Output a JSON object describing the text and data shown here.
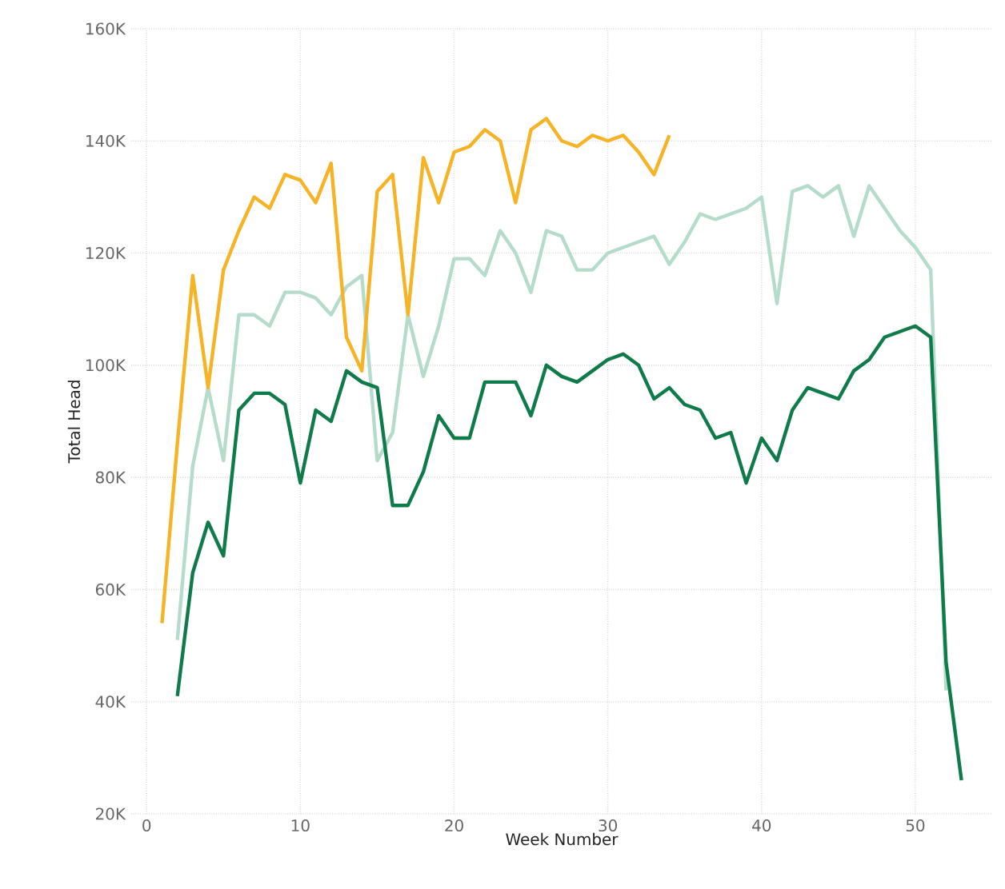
{
  "chart_data": {
    "type": "line",
    "xlabel": "Week Number",
    "ylabel": "Total Head",
    "xlim": [
      -1,
      55
    ],
    "xticks": [
      0,
      10,
      20,
      30,
      40,
      50
    ],
    "ylim": [
      20000,
      160000
    ],
    "yticks": [
      {
        "value": 20000,
        "label": "20K"
      },
      {
        "value": 40000,
        "label": "40K"
      },
      {
        "value": 60000,
        "label": "60K"
      },
      {
        "value": 80000,
        "label": "80K"
      },
      {
        "value": 100000,
        "label": "100K"
      },
      {
        "value": 120000,
        "label": "120K"
      },
      {
        "value": 140000,
        "label": "140K"
      },
      {
        "value": 160000,
        "label": "160K"
      }
    ],
    "grid": true,
    "line_style": "solid",
    "marker": "none",
    "series": [
      {
        "color": "#b5dccb",
        "x": [
          2,
          3,
          4,
          5,
          6,
          7,
          8,
          9,
          10,
          11,
          12,
          13,
          14,
          15,
          16,
          17,
          18,
          19,
          20,
          21,
          22,
          23,
          24,
          25,
          26,
          27,
          28,
          29,
          30,
          31,
          32,
          33,
          34,
          35,
          36,
          37,
          38,
          39,
          40,
          41,
          42,
          43,
          44,
          45,
          46,
          47,
          48,
          49,
          50,
          51,
          52
        ],
        "values": [
          51000,
          82000,
          96000,
          83000,
          109000,
          109000,
          107000,
          113000,
          113000,
          112000,
          109000,
          114000,
          116000,
          83000,
          88000,
          109000,
          98000,
          107000,
          119000,
          119000,
          116000,
          124000,
          120000,
          113000,
          124000,
          123000,
          117000,
          117000,
          120000,
          121000,
          122000,
          123000,
          118000,
          122000,
          127000,
          126000,
          127000,
          128000,
          130000,
          111000,
          131000,
          132000,
          130000,
          132000,
          123000,
          132000,
          128000,
          124000,
          121000,
          117000,
          42000
        ]
      },
      {
        "color": "#0f7a4a",
        "x": [
          2,
          3,
          4,
          5,
          6,
          7,
          8,
          9,
          10,
          11,
          12,
          13,
          14,
          15,
          16,
          17,
          18,
          19,
          20,
          21,
          22,
          23,
          24,
          25,
          26,
          27,
          28,
          29,
          30,
          31,
          32,
          33,
          34,
          35,
          36,
          37,
          38,
          39,
          40,
          41,
          42,
          43,
          44,
          45,
          46,
          47,
          48,
          49,
          50,
          51,
          52,
          53
        ],
        "values": [
          41000,
          63000,
          72000,
          66000,
          92000,
          95000,
          95000,
          93000,
          79000,
          92000,
          90000,
          99000,
          97000,
          96000,
          75000,
          75000,
          81000,
          91000,
          87000,
          87000,
          97000,
          97000,
          97000,
          91000,
          100000,
          98000,
          97000,
          99000,
          101000,
          102000,
          100000,
          94000,
          96000,
          93000,
          92000,
          87000,
          88000,
          79000,
          87000,
          83000,
          92000,
          96000,
          95000,
          94000,
          99000,
          101000,
          105000,
          106000,
          107000,
          105000,
          47000,
          26000
        ]
      },
      {
        "color": "#f5b325",
        "x": [
          1,
          2,
          3,
          4,
          5,
          6,
          7,
          8,
          9,
          10,
          11,
          12,
          13,
          14,
          15,
          16,
          17,
          18,
          19,
          20,
          21,
          22,
          23,
          24,
          25,
          26,
          27,
          28,
          29,
          30,
          31,
          32,
          33,
          34
        ],
        "values": [
          54000,
          86000,
          116000,
          96000,
          117000,
          124000,
          130000,
          128000,
          134000,
          133000,
          129000,
          136000,
          105000,
          99000,
          131000,
          134000,
          109000,
          137000,
          129000,
          138000,
          139000,
          142000,
          140000,
          129000,
          142000,
          144000,
          140000,
          139000,
          141000,
          140000,
          141000,
          138000,
          134000,
          141000
        ]
      }
    ]
  }
}
